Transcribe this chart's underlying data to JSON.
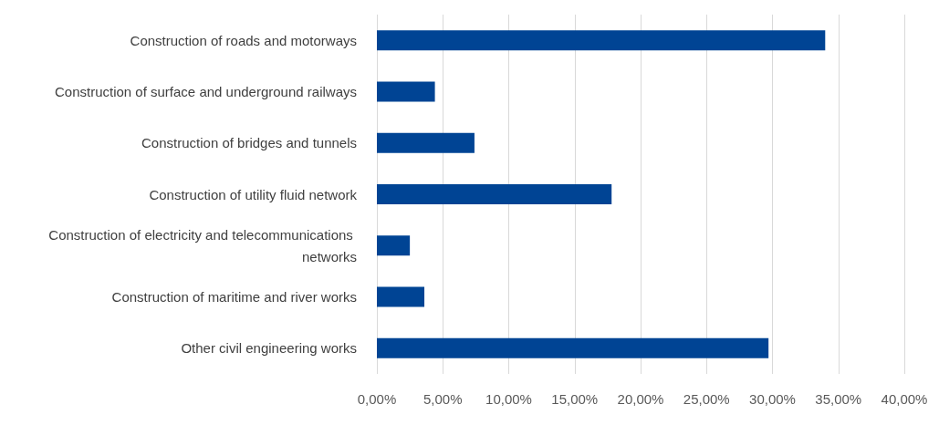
{
  "chart_data": {
    "type": "bar",
    "orientation": "horizontal",
    "categories": [
      "Construction of roads and motorways",
      "Construction of surface and underground railways",
      "Construction of bridges and tunnels",
      "Construction of utility fluid network",
      "Construction of electricity and telecommunications networks",
      "Construction of maritime and river works",
      "Other civil engineering works"
    ],
    "values": [
      34.0,
      4.4,
      7.4,
      17.8,
      2.5,
      3.6,
      29.7
    ],
    "color": "#004494",
    "xlim": [
      0,
      40
    ],
    "xticks": [
      {
        "value": 0,
        "label": "0,00%"
      },
      {
        "value": 5,
        "label": "5,00%"
      },
      {
        "value": 10,
        "label": "10,00%"
      },
      {
        "value": 15,
        "label": "15,00%"
      },
      {
        "value": 20,
        "label": "20,00%"
      },
      {
        "value": 25,
        "label": "25,00%"
      },
      {
        "value": 30,
        "label": "30,00%"
      },
      {
        "value": 35,
        "label": "35,00%"
      },
      {
        "value": 40,
        "label": "40,00%"
      }
    ],
    "grid": "x"
  }
}
